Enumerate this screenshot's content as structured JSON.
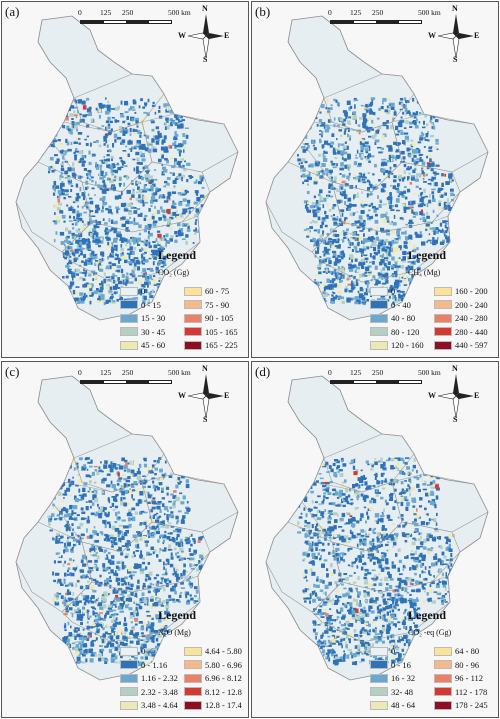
{
  "scale_bar": {
    "ticks": [
      "0",
      "125",
      "250",
      "500 km"
    ]
  },
  "compass": {
    "n": "N",
    "s": "S",
    "e": "E",
    "w": "W"
  },
  "panels": [
    {
      "label": "(a)",
      "legend_title": "Legend",
      "unit": "CO₂ (Gg)",
      "classes": [
        {
          "label": "0",
          "color": "#e9f1f5"
        },
        {
          "label": "0 - 15",
          "color": "#2f72b8"
        },
        {
          "label": "15 - 30",
          "color": "#6aa8d0"
        },
        {
          "label": "30 - 45",
          "color": "#b5cfc4"
        },
        {
          "label": "45 - 60",
          "color": "#ece9b4"
        },
        {
          "label": "60 - 75",
          "color": "#fbe49a"
        },
        {
          "label": "75 - 90",
          "color": "#f6b98c"
        },
        {
          "label": "90 - 105",
          "color": "#ea8064"
        },
        {
          "label": "105 - 165",
          "color": "#d23a33"
        },
        {
          "label": "165 - 225",
          "color": "#8e0f22"
        }
      ]
    },
    {
      "label": "(b)",
      "legend_title": "Legend",
      "unit": "CH₄ (Mg)",
      "classes": [
        {
          "label": "0",
          "color": "#e9f1f5"
        },
        {
          "label": "0 - 40",
          "color": "#2f72b8"
        },
        {
          "label": "40 - 80",
          "color": "#6aa8d0"
        },
        {
          "label": "80 - 120",
          "color": "#b5cfc4"
        },
        {
          "label": "120 - 160",
          "color": "#ece9b4"
        },
        {
          "label": "160 - 200",
          "color": "#fbe49a"
        },
        {
          "label": "200 - 240",
          "color": "#f6b98c"
        },
        {
          "label": "240 - 280",
          "color": "#ea8064"
        },
        {
          "label": "280 - 440",
          "color": "#d23a33"
        },
        {
          "label": "440 - 597",
          "color": "#8e0f22"
        }
      ]
    },
    {
      "label": "(c)",
      "legend_title": "Legend",
      "unit": "N₂O (Mg)",
      "classes": [
        {
          "label": "0",
          "color": "#e9f1f5"
        },
        {
          "label": "0 - 1.16",
          "color": "#2f72b8"
        },
        {
          "label": "1.16 - 2.32",
          "color": "#6aa8d0"
        },
        {
          "label": "2.32 - 3.48",
          "color": "#b5cfc4"
        },
        {
          "label": "3.48 - 4.64",
          "color": "#ece9b4"
        },
        {
          "label": "4.64 - 5.80",
          "color": "#fbe49a"
        },
        {
          "label": "5.80 - 6.96",
          "color": "#f6b98c"
        },
        {
          "label": "6.96 - 8.12",
          "color": "#ea8064"
        },
        {
          "label": "8.12 - 12.8",
          "color": "#d23a33"
        },
        {
          "label": "12.8 - 17.4",
          "color": "#8e0f22"
        }
      ]
    },
    {
      "label": "(d)",
      "legend_title": "Legend",
      "unit": "CO₂ -eq (Gg)",
      "classes": [
        {
          "label": "0",
          "color": "#e9f1f5"
        },
        {
          "label": "0 - 16",
          "color": "#2f72b8"
        },
        {
          "label": "16 - 32",
          "color": "#6aa8d0"
        },
        {
          "label": "32- 48",
          "color": "#b5cfc4"
        },
        {
          "label": "48 - 64",
          "color": "#ece9b4"
        },
        {
          "label": "64 - 80",
          "color": "#fbe49a"
        },
        {
          "label": "80 - 96",
          "color": "#f6b98c"
        },
        {
          "label": "96 - 112",
          "color": "#ea8064"
        },
        {
          "label": "112 - 178",
          "color": "#d23a33"
        },
        {
          "label": "178 - 245",
          "color": "#8e0f22"
        }
      ]
    }
  ]
}
